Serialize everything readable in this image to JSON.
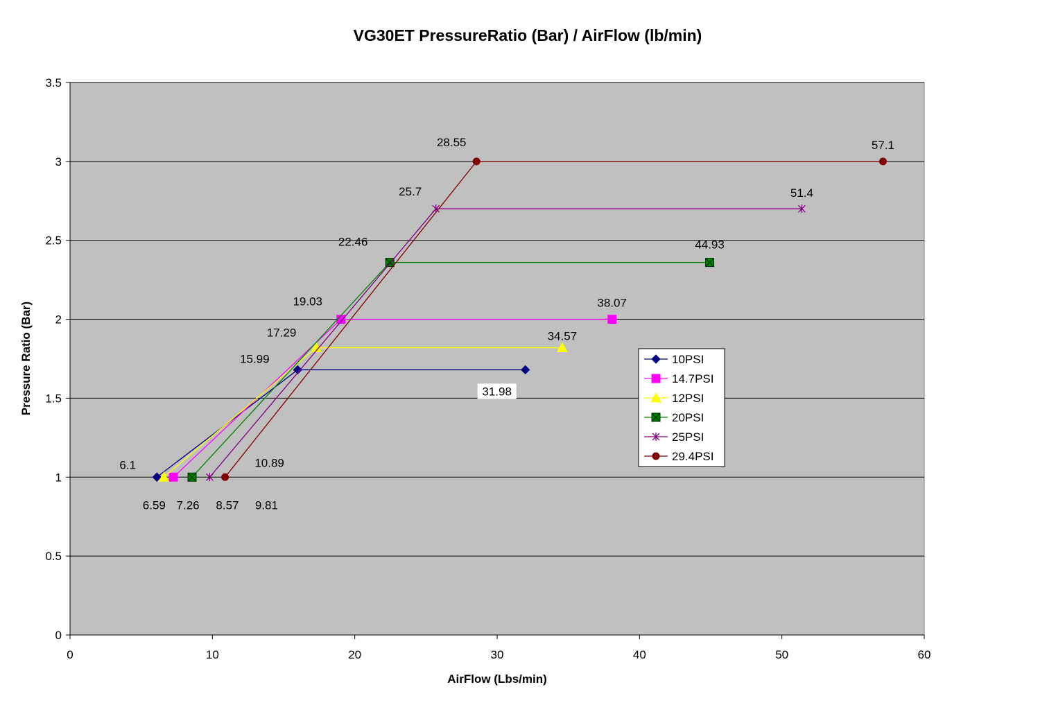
{
  "chart_data": {
    "type": "line",
    "title": "VG30ET PressureRatio (Bar) / AirFlow (lb/min)",
    "xlabel": "AirFlow (Lbs/min)",
    "ylabel": "Pressure Ratio (Bar)",
    "xlim": [
      0,
      60
    ],
    "ylim": [
      0,
      3.5
    ],
    "xticks": [
      0,
      10,
      20,
      30,
      40,
      50,
      60
    ],
    "yticks": [
      0,
      0.5,
      1,
      1.5,
      2,
      2.5,
      3,
      3.5
    ],
    "grid": "horizontal",
    "plot_background": "#c0c0c0",
    "legend_position": "right",
    "series": [
      {
        "name": "10PSI",
        "color": "#000080",
        "marker": "diamond",
        "points": [
          {
            "x": 6.1,
            "y": 1
          },
          {
            "x": 15.99,
            "y": 1.68
          },
          {
            "x": 31.98,
            "y": 1.68
          }
        ],
        "labels": [
          "6.1",
          "15.99",
          "31.98"
        ]
      },
      {
        "name": "14.7PSI",
        "color": "#ff00ff",
        "marker": "square",
        "points": [
          {
            "x": 7.26,
            "y": 1
          },
          {
            "x": 19.03,
            "y": 2
          },
          {
            "x": 38.07,
            "y": 2
          }
        ],
        "labels": [
          "7.26",
          "19.03",
          "38.07"
        ]
      },
      {
        "name": "12PSI",
        "color": "#ffff00",
        "marker": "triangle",
        "points": [
          {
            "x": 6.59,
            "y": 1
          },
          {
            "x": 17.29,
            "y": 1.82
          },
          {
            "x": 34.57,
            "y": 1.82
          }
        ],
        "labels": [
          "6.59",
          "17.29",
          "34.57"
        ]
      },
      {
        "name": "20PSI",
        "color": "#008000",
        "marker": "xbox",
        "points": [
          {
            "x": 8.57,
            "y": 1
          },
          {
            "x": 22.46,
            "y": 2.36
          },
          {
            "x": 44.93,
            "y": 2.36
          }
        ],
        "labels": [
          "8.57",
          "22.46",
          "44.93"
        ]
      },
      {
        "name": "25PSI",
        "color": "#800080",
        "marker": "star",
        "points": [
          {
            "x": 9.81,
            "y": 1
          },
          {
            "x": 25.7,
            "y": 2.7
          },
          {
            "x": 51.4,
            "y": 2.7
          }
        ],
        "labels": [
          "9.81",
          "25.7",
          "51.4"
        ]
      },
      {
        "name": "29.4PSI",
        "color": "#800000",
        "marker": "circle",
        "points": [
          {
            "x": 10.89,
            "y": 1
          },
          {
            "x": 28.55,
            "y": 3
          },
          {
            "x": 57.1,
            "y": 3
          }
        ],
        "labels": [
          "10.89",
          "28.55",
          "57.1"
        ]
      }
    ]
  }
}
